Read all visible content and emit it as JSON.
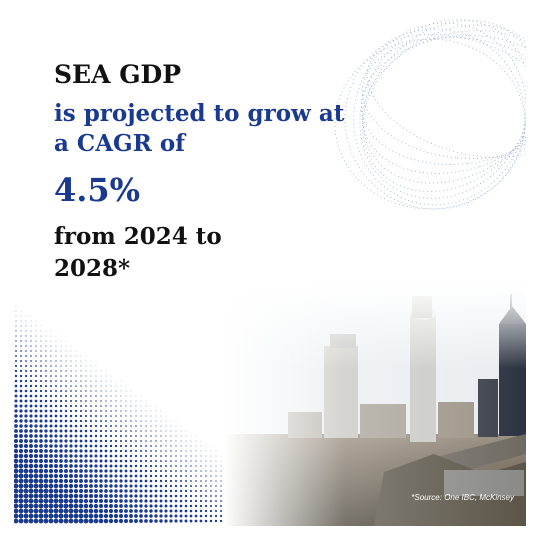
{
  "headline": {
    "line1": "SEA GDP",
    "line2": "is projected to grow at",
    "line3": "a CAGR of",
    "figure": "4.5%",
    "line5": "from 2024 to",
    "line6": "2028*"
  },
  "footnote": "*Source: One IBC, McKinsey",
  "colors": {
    "accent": "#1a3a8f",
    "text": "#111111",
    "background": "#ffffff"
  }
}
